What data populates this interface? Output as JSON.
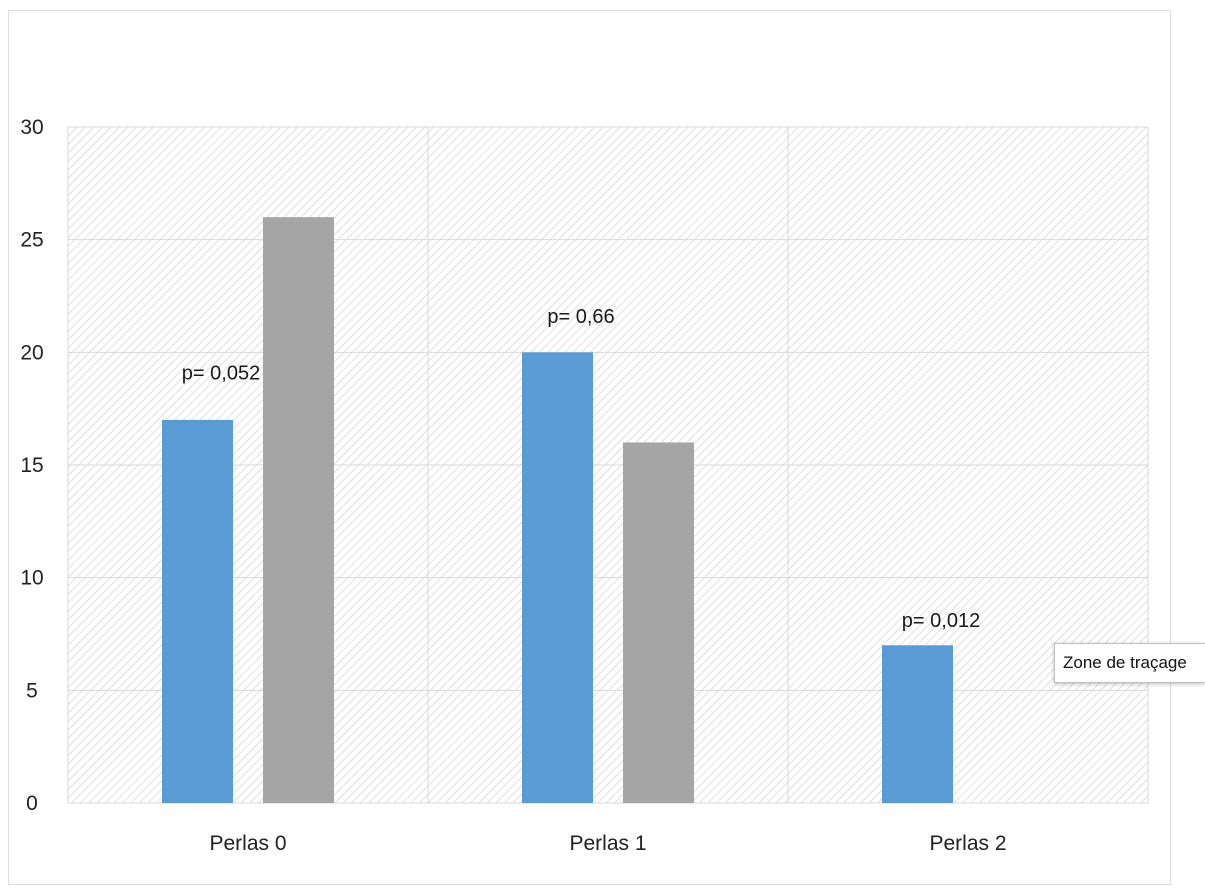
{
  "chart_data": {
    "type": "bar",
    "categories": [
      "Perlas 0",
      "Perlas 1",
      "Perlas 2"
    ],
    "series": [
      {
        "values": [
          17,
          20,
          7
        ],
        "color": "#5b9bd5"
      },
      {
        "values": [
          26,
          16,
          0
        ],
        "color": "#a5a5a5"
      }
    ],
    "annotations": [
      "p= 0,052",
      "p= 0,66",
      "p= 0,012"
    ],
    "annotation_y": [
      20,
      22.5,
      9
    ],
    "ylim": [
      0,
      30
    ],
    "yticks": [
      0,
      5,
      10,
      15,
      20,
      25,
      30
    ],
    "grid": true,
    "plot_background": "hatched"
  },
  "tooltip": {
    "text": "Zone de traçage"
  }
}
